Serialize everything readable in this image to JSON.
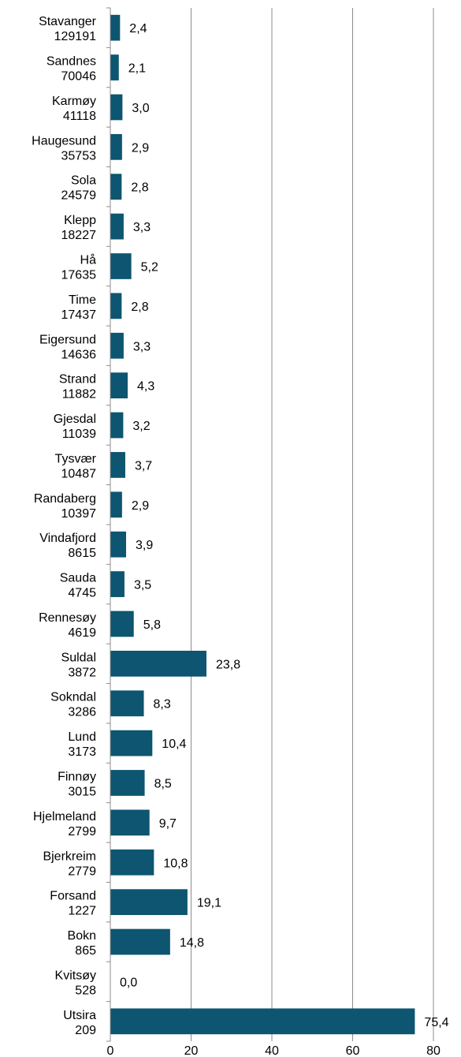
{
  "chart_data": {
    "type": "bar",
    "orientation": "horizontal",
    "categories": [
      [
        "Stavanger",
        "129191"
      ],
      [
        "Sandnes",
        "70046"
      ],
      [
        "Karmøy",
        "41118"
      ],
      [
        "Haugesund",
        "35753"
      ],
      [
        "Sola",
        "24579"
      ],
      [
        "Klepp",
        "18227"
      ],
      [
        "Hå",
        "17635"
      ],
      [
        "Time",
        "17437"
      ],
      [
        "Eigersund",
        "14636"
      ],
      [
        "Strand",
        "11882"
      ],
      [
        "Gjesdal",
        "11039"
      ],
      [
        "Tysvær",
        "10487"
      ],
      [
        "Randaberg",
        "10397"
      ],
      [
        "Vindafjord",
        "8615"
      ],
      [
        "Sauda",
        "4745"
      ],
      [
        "Rennesøy",
        "4619"
      ],
      [
        "Suldal",
        "3872"
      ],
      [
        "Sokndal",
        "3286"
      ],
      [
        "Lund",
        "3173"
      ],
      [
        "Finnøy",
        "3015"
      ],
      [
        "Hjelmeland",
        "2799"
      ],
      [
        "Bjerkreim",
        "2779"
      ],
      [
        "Forsand",
        "1227"
      ],
      [
        "Bokn",
        "865"
      ],
      [
        "Kvitsøy",
        "528"
      ],
      [
        "Utsira",
        "209"
      ]
    ],
    "values": [
      2.4,
      2.1,
      3.0,
      2.9,
      2.8,
      3.3,
      5.2,
      2.8,
      3.3,
      4.3,
      3.2,
      3.7,
      2.9,
      3.9,
      3.5,
      5.8,
      23.8,
      8.3,
      10.4,
      8.5,
      9.7,
      10.8,
      19.1,
      14.8,
      0.0,
      75.4
    ],
    "value_labels": [
      "2,4",
      "2,1",
      "3,0",
      "2,9",
      "2,8",
      "3,3",
      "5,2",
      "2,8",
      "3,3",
      "4,3",
      "3,2",
      "3,7",
      "2,9",
      "3,9",
      "3,5",
      "5,8",
      "23,8",
      "8,3",
      "10,4",
      "8,5",
      "9,7",
      "10,8",
      "19,1",
      "14,8",
      "0,0",
      "75,4"
    ],
    "x_ticks": [
      0,
      20,
      40,
      60,
      80
    ],
    "xlim": [
      0,
      80
    ],
    "title": "",
    "xlabel": "",
    "ylabel": "",
    "grid": "vertical",
    "legend": "none",
    "bar_color": "#0d5570",
    "grid_color": "#8c8c8c",
    "axis_color": "#8c8c8c"
  }
}
